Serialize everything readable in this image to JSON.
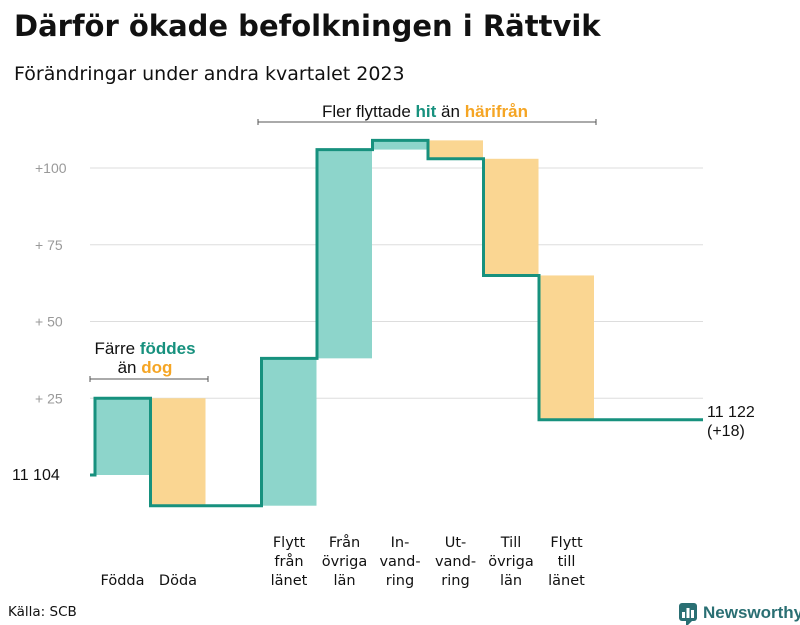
{
  "title": "Därför ökade befolkningen i Rättvik",
  "subtitle": "Förändringar under andra kvartalet 2023",
  "source": "Källa: SCB",
  "brand": "Newsworthy",
  "colors": {
    "increase": "#8dd5cb",
    "decrease": "#fad692",
    "line": "#17917e",
    "accent_green": "#17917e",
    "accent_orange": "#f5a524",
    "grid": "#dddddd",
    "tick": "#999999",
    "brand": "#2a6f73"
  },
  "annotations": {
    "births": {
      "line1": "Färre",
      "line1_em": "föddes",
      "line2": "än",
      "line2_em": "dog"
    },
    "migration": {
      "pre": "Fler flyttade",
      "em1": "hit",
      "mid": "än",
      "em2": "härifrån"
    }
  },
  "start_label": "11  104",
  "end_label": {
    "line1": "11 122",
    "line2": "(+18)"
  },
  "chart_data": {
    "type": "waterfall",
    "title": "Därför ökade befolkningen i Rättvik",
    "subtitle": "Förändringar under andra kvartalet 2023",
    "start_value": 11104,
    "end_value": 11122,
    "net_change": 18,
    "yticks": [
      "+100",
      "+  75",
      "+  50",
      "+  25"
    ],
    "ytick_values": [
      100,
      75,
      50,
      25
    ],
    "ylim": [
      -12,
      115
    ],
    "steps": [
      {
        "label_lines": [
          "Födda"
        ],
        "change": 25,
        "group": 0
      },
      {
        "label_lines": [
          "Döda"
        ],
        "change": -35,
        "group": 0
      },
      {
        "label_lines": [
          "Flytt",
          "från",
          "länet"
        ],
        "change": 48,
        "group": 1
      },
      {
        "label_lines": [
          "Från",
          "övriga",
          "län"
        ],
        "change": 68,
        "group": 1
      },
      {
        "label_lines": [
          "In-",
          "vand-",
          "ring"
        ],
        "change": 3,
        "group": 1
      },
      {
        "label_lines": [
          "Ut-",
          "vand-",
          "ring"
        ],
        "change": -6,
        "group": 1
      },
      {
        "label_lines": [
          "Till",
          "övriga",
          "län"
        ],
        "change": -38,
        "group": 1
      },
      {
        "label_lines": [
          "Flytt",
          "till",
          "länet"
        ],
        "change": -47,
        "group": 1
      }
    ]
  }
}
